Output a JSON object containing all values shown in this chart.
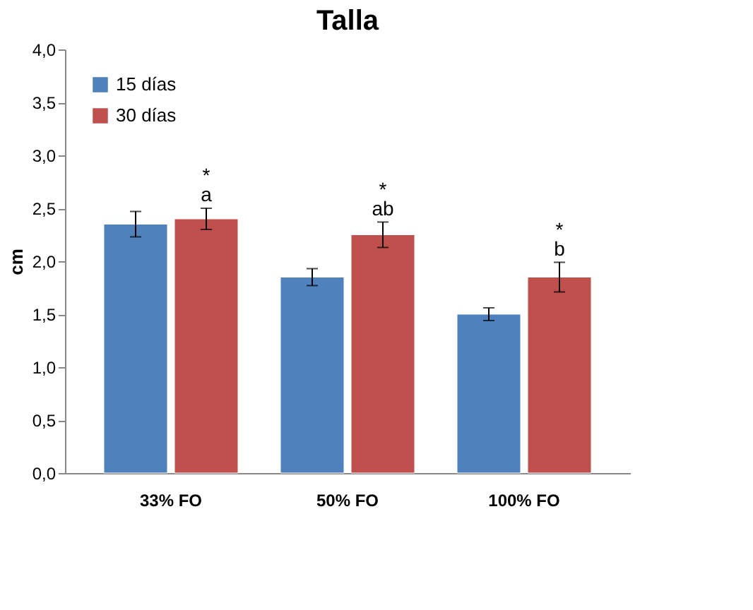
{
  "chart_data": {
    "type": "bar",
    "title": "Talla",
    "ylabel": "cm",
    "categories": [
      "33% FO",
      "50% FO",
      "100% FO"
    ],
    "series": [
      {
        "name": "15 días",
        "color": "#4f81bd",
        "values": [
          2.35,
          1.85,
          1.5
        ],
        "errors": [
          0.12,
          0.08,
          0.06
        ]
      },
      {
        "name": "30 días",
        "color": "#c0504d",
        "values": [
          2.4,
          2.25,
          1.85
        ],
        "errors": [
          0.1,
          0.12,
          0.14
        ]
      }
    ],
    "ylim": [
      0,
      4
    ],
    "yticks": [
      {
        "value": 0,
        "label": "0,0"
      },
      {
        "value": 0.5,
        "label": "0,5"
      },
      {
        "value": 1,
        "label": "1,0"
      },
      {
        "value": 1.5,
        "label": "1,5"
      },
      {
        "value": 2,
        "label": "2,0"
      },
      {
        "value": 2.5,
        "label": "2,5"
      },
      {
        "value": 3,
        "label": "3,0"
      },
      {
        "value": 3.5,
        "label": "3,5"
      },
      {
        "value": 4,
        "label": "4,0"
      }
    ],
    "annotations": [
      "*",
      "a",
      "*",
      "ab",
      "*",
      "b"
    ],
    "legend": "top left",
    "grid": false
  }
}
